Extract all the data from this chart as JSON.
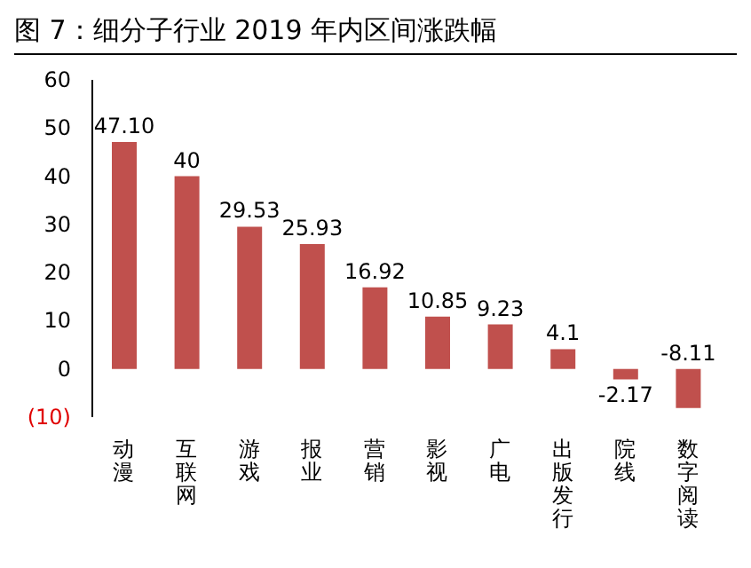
{
  "chart_data": {
    "type": "bar",
    "title": "图 7：细分子行业 2019 年内区间涨跌幅",
    "categories": [
      "动漫",
      "互联网",
      "游戏",
      "报业",
      "营销",
      "影视",
      "广电",
      "出版发行",
      "院线",
      "数字阅读"
    ],
    "values": [
      47.1,
      40,
      29.53,
      25.93,
      16.92,
      10.85,
      9.23,
      4.1,
      -2.17,
      -8.11
    ],
    "value_labels": [
      "47.10",
      "40",
      "29.53",
      "25.93",
      "16.92",
      "10.85",
      "9.23",
      "4.1",
      "-2.17",
      "-8.11"
    ],
    "color": "#c0504d",
    "ylim": [
      -10,
      60
    ],
    "yticks": [
      60,
      50,
      40,
      30,
      20,
      10,
      0,
      {
        "value": -10,
        "label": "(10)"
      }
    ]
  }
}
